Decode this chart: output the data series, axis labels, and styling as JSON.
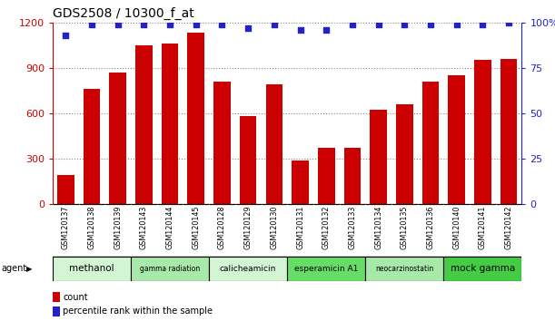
{
  "title": "GDS2508 / 10300_f_at",
  "samples": [
    "GSM120137",
    "GSM120138",
    "GSM120139",
    "GSM120143",
    "GSM120144",
    "GSM120145",
    "GSM120128",
    "GSM120129",
    "GSM120130",
    "GSM120131",
    "GSM120132",
    "GSM120133",
    "GSM120134",
    "GSM120135",
    "GSM120136",
    "GSM120140",
    "GSM120141",
    "GSM120142"
  ],
  "counts": [
    190,
    760,
    870,
    1050,
    1060,
    1130,
    810,
    580,
    790,
    285,
    370,
    370,
    620,
    660,
    810,
    850,
    950,
    960
  ],
  "percentiles": [
    93,
    99,
    99,
    99,
    99,
    99,
    99,
    97,
    99,
    96,
    96,
    99,
    99,
    99,
    99,
    99,
    99,
    100
  ],
  "agent_groups": [
    {
      "label": "methanol",
      "start": 0,
      "end": 3,
      "color": "#d4f5d4"
    },
    {
      "label": "gamma radiation",
      "start": 3,
      "end": 6,
      "color": "#a8e8a8"
    },
    {
      "label": "calicheamicin",
      "start": 6,
      "end": 9,
      "color": "#d4f5d4"
    },
    {
      "label": "esperamicin A1",
      "start": 9,
      "end": 12,
      "color": "#66dd66"
    },
    {
      "label": "neocarzinostatin",
      "start": 12,
      "end": 15,
      "color": "#a8e8a8"
    },
    {
      "label": "mock gamma",
      "start": 15,
      "end": 18,
      "color": "#44cc44"
    }
  ],
  "bar_color": "#cc0000",
  "dot_color": "#2222cc",
  "ylim_left": [
    0,
    1200
  ],
  "ylim_right": [
    0,
    100
  ],
  "yticks_left": [
    0,
    300,
    600,
    900,
    1200
  ],
  "yticks_right": [
    0,
    25,
    50,
    75,
    100
  ],
  "ylabel_right_labels": [
    "0",
    "25",
    "50",
    "75",
    "100%"
  ],
  "grid_color": "#888888",
  "bg_color": "#ffffff",
  "tick_area_color": "#cccccc",
  "agent_label": "agent"
}
